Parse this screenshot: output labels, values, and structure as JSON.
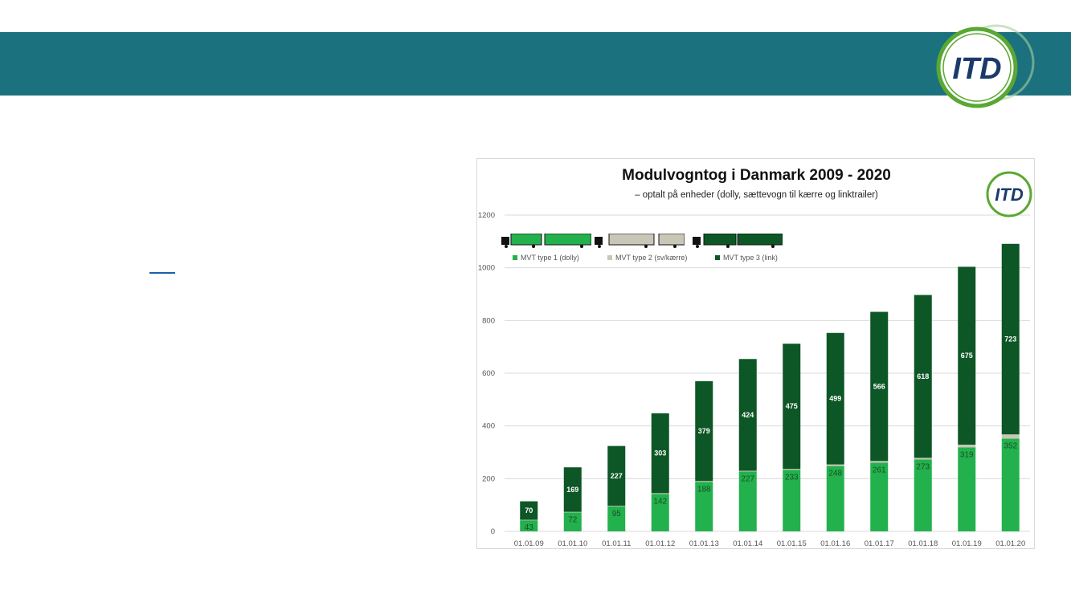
{
  "header": {
    "banner_color": "#1b727e",
    "logo_text": "ITD",
    "logo_colors": {
      "ring": "#5aa832",
      "text": "#1b3a6b"
    }
  },
  "body_link": {
    "text": ""
  },
  "chart_data": {
    "type": "bar",
    "stacked": true,
    "title": "Modulvogntog i Danmark 2009 - 2020",
    "subtitle": "– optalt på enheder (dolly, sættevogn til kærre og linktrailer)",
    "categories": [
      "01.01.09",
      "01.01.10",
      "01.01.11",
      "01.01.12",
      "01.01.13",
      "01.01.14",
      "01.01.15",
      "01.01.16",
      "01.01.17",
      "01.01.18",
      "01.01.19",
      "01.01.20"
    ],
    "series": [
      {
        "name": "MVT type 1 (dolly)",
        "color": "#22b14c",
        "values": [
          43,
          72,
          95,
          142,
          188,
          227,
          233,
          248,
          261,
          273,
          319,
          352
        ]
      },
      {
        "name": "MVT type 2 (sv/kærre)",
        "color": "#c8c6b6",
        "values": [
          1,
          2,
          2,
          3,
          3,
          3,
          4,
          6,
          6,
          6,
          10,
          16
        ]
      },
      {
        "name": "MVT type 3 (link)",
        "color": "#0d5626",
        "values": [
          70,
          169,
          227,
          303,
          379,
          424,
          475,
          499,
          566,
          618,
          675,
          723
        ]
      }
    ],
    "ylim": [
      0,
      1200
    ],
    "yticks": [
      0,
      200,
      400,
      600,
      800,
      1000,
      1200
    ],
    "xlabel": "",
    "ylabel": "",
    "grid": true,
    "legend_position": "top-left"
  }
}
